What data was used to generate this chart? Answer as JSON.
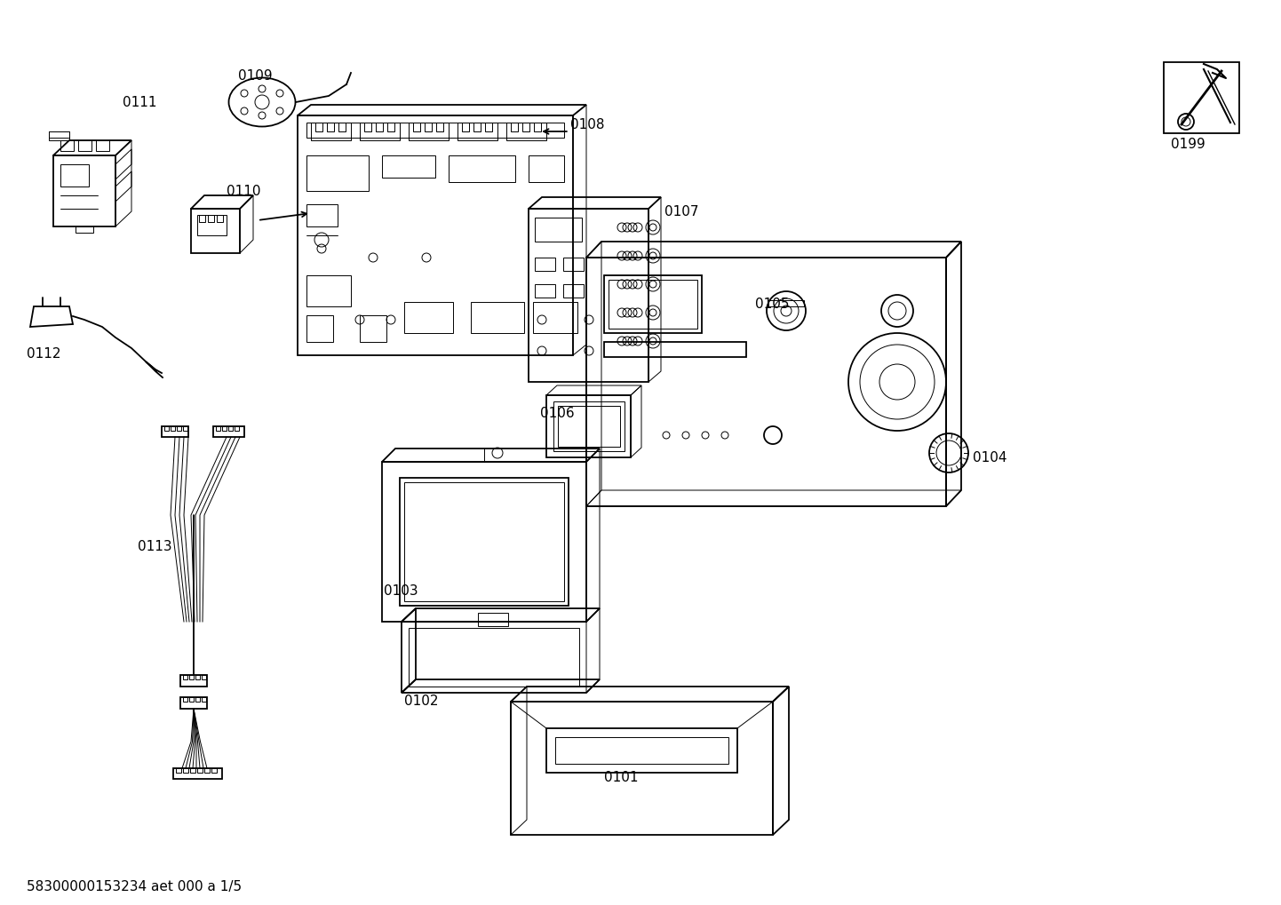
{
  "bg_color": "#ffffff",
  "lc": "#000000",
  "lw": 1.3,
  "tlw": 0.7,
  "fs": 11,
  "footer": "58300000153234 aet 000 a 1/5",
  "figsize": [
    14.42,
    10.19
  ],
  "dpi": 100
}
